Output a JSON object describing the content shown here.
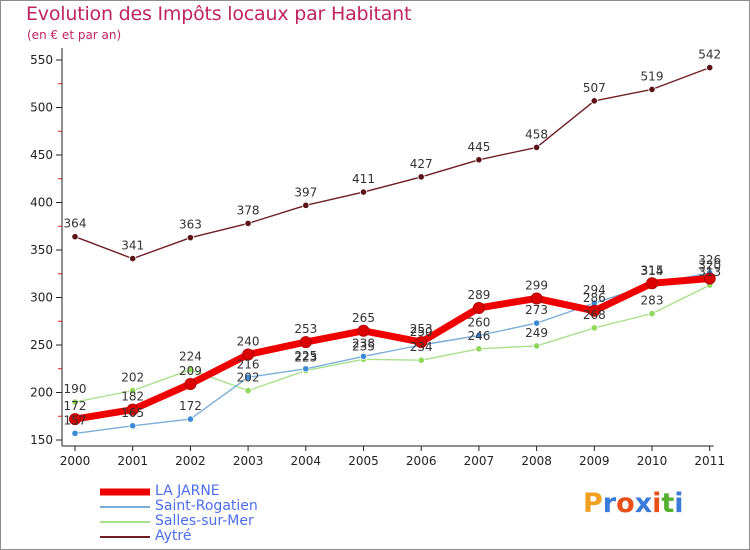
{
  "header": {
    "title": "Evolution des Impôts locaux par Habitant",
    "subtitle": "(en € et par an)"
  },
  "colors": {
    "title": "#c0245f",
    "legend_text": "#4d6df0",
    "axis": "#222222"
  },
  "logo": {
    "letters": [
      "P",
      "r",
      "o",
      "x",
      "i",
      "t",
      "i"
    ],
    "colors": [
      "#f0a020",
      "#3a7ad8",
      "#e8501a",
      "#3a7ad8",
      "#e8501a",
      "#58b030",
      "#3a7ad8"
    ]
  },
  "chart_data": {
    "type": "line",
    "categories": [
      "2000",
      "2001",
      "2002",
      "2003",
      "2004",
      "2005",
      "2006",
      "2007",
      "2008",
      "2009",
      "2010",
      "2011"
    ],
    "ylim": [
      150,
      550
    ],
    "yticks": [
      150,
      200,
      250,
      300,
      350,
      400,
      450,
      500,
      550
    ],
    "grid": false,
    "legend_position": "bottom-left",
    "series": [
      {
        "name": "Aytré",
        "color": "#6e1e24",
        "marker": "#5a1418",
        "values": [
          364,
          341,
          363,
          378,
          397,
          411,
          427,
          445,
          458,
          507,
          519,
          542
        ]
      },
      {
        "name": "Salles-sur-Mer",
        "color": "#a8e08c",
        "marker": "#8fd95a",
        "values": [
          190,
          202,
          224,
          202,
          223,
          235,
          234,
          246,
          249,
          268,
          283,
          313
        ]
      },
      {
        "name": "Saint-Rogatien",
        "color": "#7aaed8",
        "marker": "#3a8ad8",
        "values": [
          157,
          165,
          172,
          216,
          225,
          238,
          250,
          260,
          273,
          294,
          314,
          326
        ]
      },
      {
        "name": "LA JARNE",
        "color": "#ee0000",
        "marker": "#dd0000",
        "values": [
          172,
          182,
          209,
          240,
          253,
          265,
          253,
          289,
          299,
          286,
          315,
          320
        ]
      }
    ],
    "legend_order": [
      "LA JARNE",
      "Saint-Rogatien",
      "Salles-sur-Mer",
      "Aytré"
    ]
  }
}
